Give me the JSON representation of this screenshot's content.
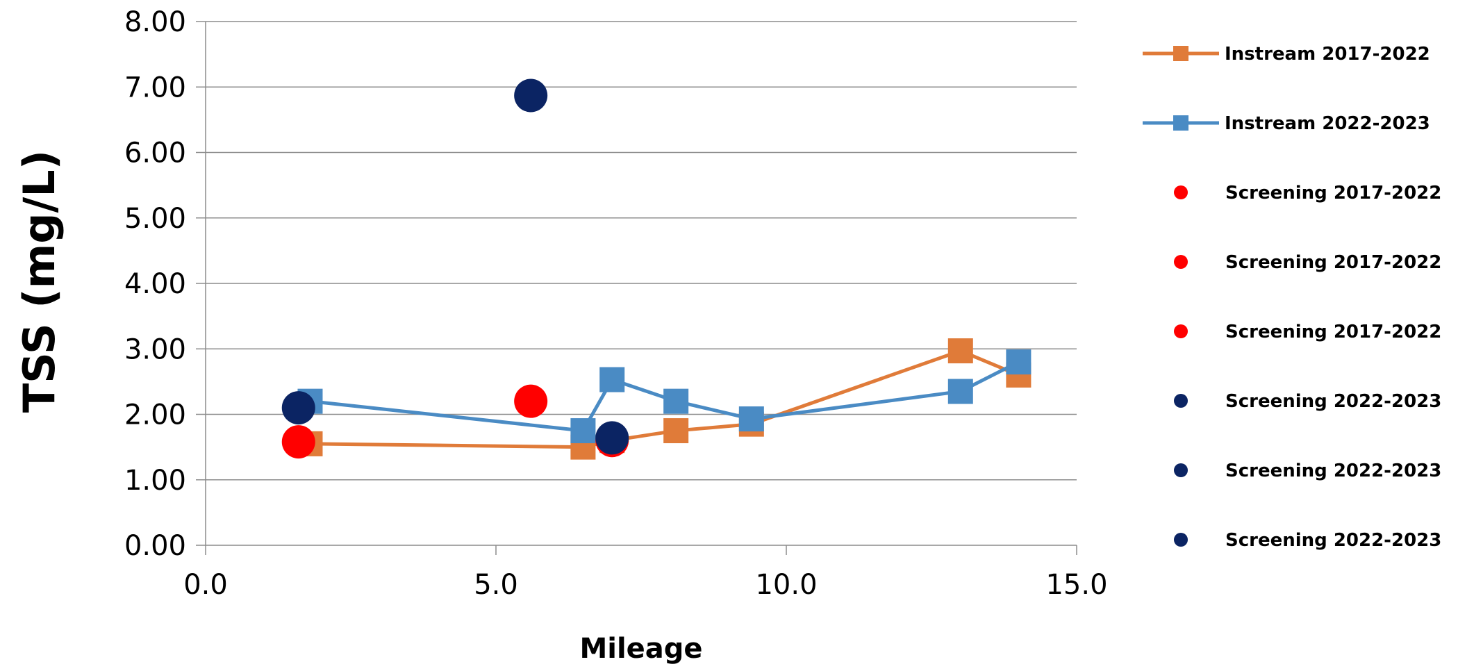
{
  "chart_data": {
    "type": "scatter",
    "xlabel": "Mileage",
    "ylabel": "TSS (mg/L)",
    "xlim": [
      0,
      15
    ],
    "ylim": [
      0,
      8
    ],
    "x_ticks": [
      "0.0",
      "5.0",
      "10.0",
      "15.0"
    ],
    "y_ticks": [
      "0.00",
      "1.00",
      "2.00",
      "3.00",
      "4.00",
      "5.00",
      "6.00",
      "7.00",
      "8.00"
    ],
    "grid": "horizontal",
    "legend_position": "right",
    "series": [
      {
        "name": "Instream 2017-2022",
        "style": "line-square",
        "color": "#E07B39",
        "points": [
          [
            1.8,
            1.55
          ],
          [
            6.5,
            1.5
          ],
          [
            7.0,
            1.6
          ],
          [
            8.1,
            1.75
          ],
          [
            9.4,
            1.85
          ],
          [
            13.0,
            2.97
          ],
          [
            14.0,
            2.6
          ]
        ]
      },
      {
        "name": "Instream 2022-2023",
        "style": "line-square",
        "color": "#4A8BC4",
        "points": [
          [
            1.8,
            2.2
          ],
          [
            6.5,
            1.75
          ],
          [
            7.0,
            2.53
          ],
          [
            8.1,
            2.2
          ],
          [
            9.4,
            1.93
          ],
          [
            13.0,
            2.35
          ],
          [
            14.0,
            2.8
          ]
        ]
      },
      {
        "name": "Screening 2017-2022",
        "style": "circle",
        "color": "#FF0000",
        "points": [
          [
            1.6,
            1.58
          ]
        ]
      },
      {
        "name": "Screening 2017-2022",
        "style": "circle",
        "color": "#FF0000",
        "points": [
          [
            5.6,
            2.2
          ]
        ]
      },
      {
        "name": "Screening 2017-2022",
        "style": "circle",
        "color": "#FF0000",
        "points": [
          [
            7.0,
            1.6
          ]
        ]
      },
      {
        "name": "Screening 2022-2023",
        "style": "circle",
        "color": "#0B2463",
        "points": [
          [
            1.6,
            2.1
          ]
        ]
      },
      {
        "name": "Screening 2022-2023",
        "style": "circle",
        "color": "#0B2463",
        "points": [
          [
            5.6,
            6.87
          ]
        ]
      },
      {
        "name": "Screening 2022-2023",
        "style": "circle",
        "color": "#0B2463",
        "points": [
          [
            7.0,
            1.64
          ]
        ]
      }
    ]
  }
}
